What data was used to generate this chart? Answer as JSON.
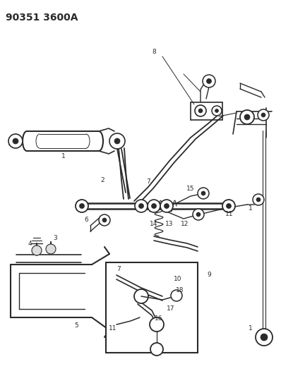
{
  "title_text": "90351 3600A",
  "bg_color": "#ffffff",
  "fig_width": 3.98,
  "fig_height": 5.33,
  "dpi": 100,
  "title_fontsize": 10,
  "title_fontweight": "bold",
  "line_color": "#2a2a2a",
  "label_fontsize": 6.5
}
